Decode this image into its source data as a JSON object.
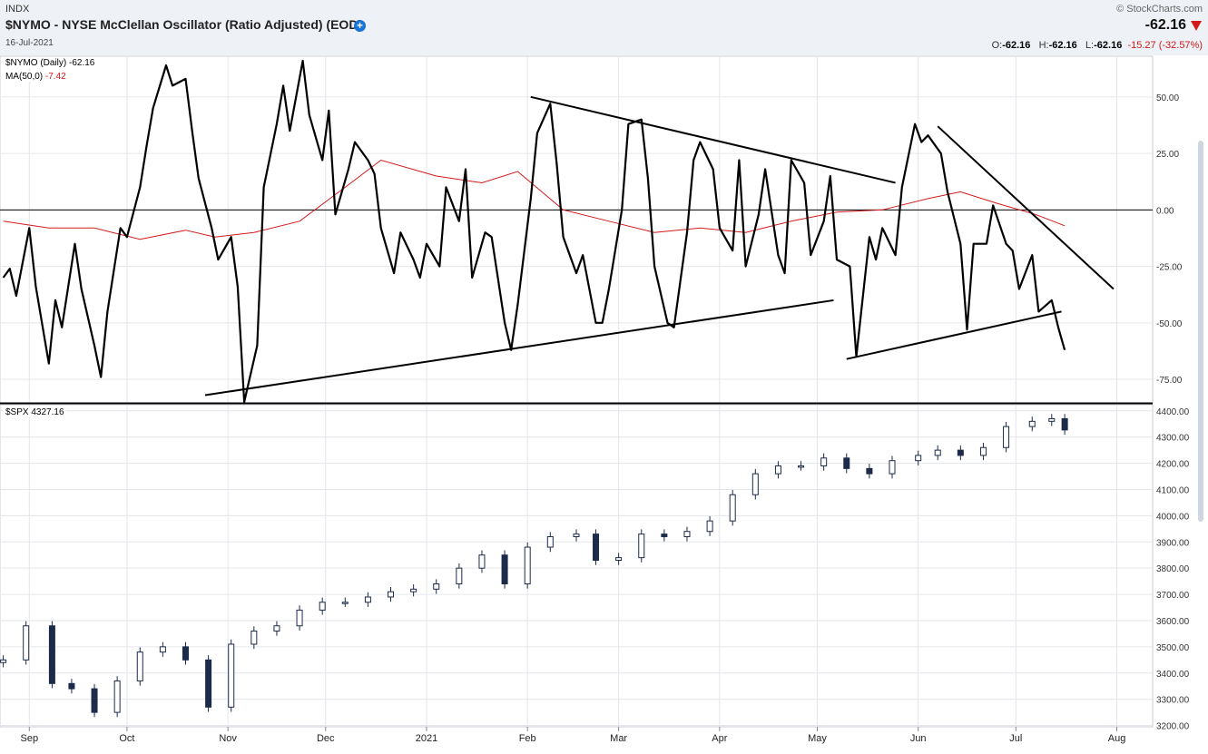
{
  "header": {
    "exchange": "INDX",
    "title": "$NYMO - NYSE McClellan Oscillator (Ratio Adjusted) (EOD)",
    "date": "16-Jul-2021",
    "credit": "© StockCharts.com",
    "last": "-62.16",
    "ohlc": {
      "o_label": "O:",
      "o": "-62.16",
      "h_label": "H:",
      "h": "-62.16",
      "l_label": "L:",
      "l": "-62.16",
      "change": "-15.27 (-32.57%)"
    },
    "colors": {
      "down": "#d21a1a",
      "accent": "#1a73d9"
    }
  },
  "legend": {
    "nymo_label": "$NYMO (Daily)",
    "nymo_value": "-62.16",
    "ma_label": "MA(50,0)",
    "ma_value": "-7.42",
    "spx_label": "$SPX",
    "spx_value": "4327.16"
  },
  "chart_data": [
    {
      "type": "line",
      "panel": "top",
      "ylim": [
        -85,
        68
      ],
      "yticks": [
        "50.00",
        "25.00",
        "0.00",
        "-25.00",
        "-50.00",
        "-75.00"
      ],
      "ytick_values": [
        50,
        25,
        0,
        -25,
        -50,
        -75
      ],
      "series": [
        {
          "name": "$NYMO (Daily)",
          "color": "#000000",
          "x": [
            "2020-08-24",
            "2020-08-26",
            "2020-08-28",
            "2020-09-01",
            "2020-09-03",
            "2020-09-07",
            "2020-09-09",
            "2020-09-11",
            "2020-09-15",
            "2020-09-17",
            "2020-09-21",
            "2020-09-23",
            "2020-09-25",
            "2020-09-29",
            "2020-10-01",
            "2020-10-05",
            "2020-10-07",
            "2020-10-09",
            "2020-10-13",
            "2020-10-15",
            "2020-10-19",
            "2020-10-21",
            "2020-10-23",
            "2020-10-27",
            "2020-10-29",
            "2020-11-02",
            "2020-11-04",
            "2020-11-06",
            "2020-11-10",
            "2020-11-12",
            "2020-11-16",
            "2020-11-18",
            "2020-11-20",
            "2020-11-24",
            "2020-11-26",
            "2020-11-30",
            "2020-12-02",
            "2020-12-04",
            "2020-12-08",
            "2020-12-10",
            "2020-12-14",
            "2020-12-16",
            "2020-12-18",
            "2020-12-22",
            "2020-12-24",
            "2020-12-28",
            "2020-12-30",
            "2021-01-01",
            "2021-01-05",
            "2021-01-07",
            "2021-01-11",
            "2021-01-13",
            "2021-01-15",
            "2021-01-19",
            "2021-01-21",
            "2021-01-25",
            "2021-01-27",
            "2021-01-29",
            "2021-02-02",
            "2021-02-04",
            "2021-02-08",
            "2021-02-10",
            "2021-02-12",
            "2021-02-16",
            "2021-02-18",
            "2021-02-22",
            "2021-02-24",
            "2021-02-26",
            "2021-03-02",
            "2021-03-04",
            "2021-03-08",
            "2021-03-10",
            "2021-03-12",
            "2021-03-16",
            "2021-03-18",
            "2021-03-22",
            "2021-03-24",
            "2021-03-26",
            "2021-03-30",
            "2021-04-01",
            "2021-04-05",
            "2021-04-07",
            "2021-04-09",
            "2021-04-13",
            "2021-04-15",
            "2021-04-19",
            "2021-04-21",
            "2021-04-23",
            "2021-04-27",
            "2021-04-29",
            "2021-05-03",
            "2021-05-05",
            "2021-05-07",
            "2021-05-11",
            "2021-05-13",
            "2021-05-17",
            "2021-05-19",
            "2021-05-21",
            "2021-05-25",
            "2021-05-27",
            "2021-05-31",
            "2021-06-02",
            "2021-06-04",
            "2021-06-08",
            "2021-06-10",
            "2021-06-14",
            "2021-06-16",
            "2021-06-18",
            "2021-06-22",
            "2021-06-24",
            "2021-06-28",
            "2021-06-30",
            "2021-07-02",
            "2021-07-06",
            "2021-07-08",
            "2021-07-12",
            "2021-07-14",
            "2021-07-16"
          ],
          "y": [
            -30,
            -26,
            -38,
            -8,
            -34,
            -68,
            -40,
            -52,
            -15,
            -35,
            -60,
            -74,
            -45,
            -8,
            -12,
            10,
            28,
            45,
            64,
            55,
            58,
            35,
            14,
            -8,
            -22,
            -12,
            -34,
            -85,
            -60,
            10,
            38,
            55,
            35,
            66,
            42,
            22,
            44,
            -2,
            18,
            30,
            22,
            16,
            -8,
            -28,
            -10,
            -22,
            -30,
            -15,
            -25,
            10,
            -5,
            18,
            -30,
            -10,
            -12,
            -50,
            -62,
            -42,
            5,
            34,
            47,
            20,
            -12,
            -28,
            -20,
            -50,
            -50,
            -35,
            0,
            38,
            40,
            14,
            -25,
            -50,
            -52,
            -10,
            22,
            30,
            18,
            -8,
            -18,
            22,
            -25,
            -2,
            18,
            -20,
            -28,
            22,
            12,
            -20,
            -5,
            15,
            -22,
            -25,
            -65,
            -12,
            -22,
            -8,
            -20,
            10,
            38,
            30,
            33,
            25,
            8,
            -15,
            -53,
            -15,
            -15,
            2,
            -15,
            -18,
            -35,
            -20,
            -45,
            -40,
            -52,
            -62
          ]
        },
        {
          "name": "MA(50,0)",
          "color": "#d21a1a",
          "x": [
            "2020-08-24",
            "2020-09-07",
            "2020-09-21",
            "2020-10-05",
            "2020-10-19",
            "2020-10-28",
            "2020-11-09",
            "2020-11-23",
            "2020-12-07",
            "2020-12-18",
            "2021-01-04",
            "2021-01-18",
            "2021-01-29",
            "2021-02-12",
            "2021-02-26",
            "2021-03-12",
            "2021-03-26",
            "2021-04-09",
            "2021-04-23",
            "2021-05-07",
            "2021-05-21",
            "2021-06-04",
            "2021-06-14",
            "2021-06-25",
            "2021-07-07",
            "2021-07-16"
          ],
          "y": [
            -5,
            -8,
            -8,
            -13,
            -9,
            -12,
            -10,
            -5,
            10,
            22,
            15,
            12,
            17,
            0,
            -5,
            -10,
            -8,
            -10,
            -5,
            -1,
            0,
            5,
            8,
            3,
            -2,
            -7
          ]
        }
      ],
      "trendlines": [
        {
          "from": [
            "2020-10-25",
            -82
          ],
          "to": [
            "2021-05-06",
            -40
          ]
        },
        {
          "from": [
            "2021-02-02",
            50
          ],
          "to": [
            "2021-05-25",
            12
          ]
        },
        {
          "from": [
            "2021-05-10",
            -66
          ],
          "to": [
            "2021-07-15",
            -45
          ]
        },
        {
          "from": [
            "2021-06-07",
            37
          ],
          "to": [
            "2021-07-31",
            -35
          ]
        }
      ]
    },
    {
      "type": "candlestick",
      "panel": "bottom",
      "ylim": [
        3195,
        4420
      ],
      "yticks": [
        "4400.00",
        "4300.00",
        "4200.00",
        "4100.00",
        "4000.00",
        "3900.00",
        "3800.00",
        "3700.00",
        "3600.00",
        "3500.00",
        "3400.00",
        "3300.00",
        "3200.00"
      ],
      "ytick_values": [
        4400,
        4300,
        4200,
        4100,
        4000,
        3900,
        3800,
        3700,
        3600,
        3500,
        3400,
        3300,
        3200
      ],
      "series": [
        {
          "name": "$SPX",
          "x": [
            "2020-08-24",
            "2020-08-31",
            "2020-09-08",
            "2020-09-14",
            "2020-09-21",
            "2020-09-28",
            "2020-10-05",
            "2020-10-12",
            "2020-10-19",
            "2020-10-26",
            "2020-11-02",
            "2020-11-09",
            "2020-11-16",
            "2020-11-23",
            "2020-11-30",
            "2020-12-07",
            "2020-12-14",
            "2020-12-21",
            "2020-12-28",
            "2021-01-04",
            "2021-01-11",
            "2021-01-18",
            "2021-01-25",
            "2021-02-01",
            "2021-02-08",
            "2021-02-16",
            "2021-02-22",
            "2021-03-01",
            "2021-03-08",
            "2021-03-15",
            "2021-03-22",
            "2021-03-29",
            "2021-04-05",
            "2021-04-12",
            "2021-04-19",
            "2021-04-26",
            "2021-05-03",
            "2021-05-10",
            "2021-05-17",
            "2021-05-24",
            "2021-06-01",
            "2021-06-07",
            "2021-06-14",
            "2021-06-21",
            "2021-06-28",
            "2021-07-06",
            "2021-07-12",
            "2021-07-16"
          ],
          "y": [
            3450,
            3580,
            3360,
            3340,
            3250,
            3370,
            3480,
            3500,
            3450,
            3270,
            3510,
            3560,
            3580,
            3640,
            3670,
            3670,
            3690,
            3710,
            3720,
            3740,
            3800,
            3850,
            3740,
            3880,
            3920,
            3930,
            3830,
            3840,
            3930,
            3920,
            3940,
            3980,
            4080,
            4160,
            4190,
            4190,
            4220,
            4180,
            4160,
            4210,
            4230,
            4250,
            4230,
            4260,
            4340,
            4360,
            4370,
            4327
          ]
        }
      ]
    }
  ],
  "xaxis": {
    "ticks": [
      {
        "label": "Sep",
        "date": "2020-09-01"
      },
      {
        "label": "Oct",
        "date": "2020-10-01"
      },
      {
        "label": "Nov",
        "date": "2020-11-01"
      },
      {
        "label": "Dec",
        "date": "2020-12-01"
      },
      {
        "label": "2021",
        "date": "2021-01-01"
      },
      {
        "label": "Feb",
        "date": "2021-02-01"
      },
      {
        "label": "Mar",
        "date": "2021-03-01"
      },
      {
        "label": "Apr",
        "date": "2021-04-01"
      },
      {
        "label": "May",
        "date": "2021-05-01"
      },
      {
        "label": "Jun",
        "date": "2021-06-01"
      },
      {
        "label": "Jul",
        "date": "2021-07-01"
      },
      {
        "label": "Aug",
        "date": "2021-08-01"
      }
    ]
  }
}
